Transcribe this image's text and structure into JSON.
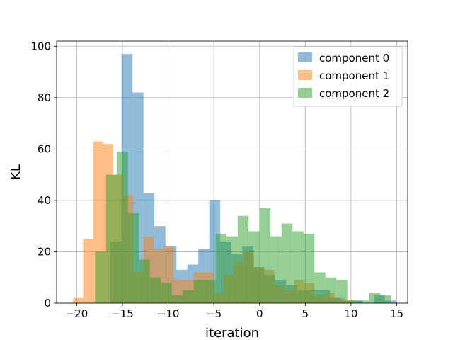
{
  "chart_data": {
    "type": "bar",
    "subtype": "histogram-overlay",
    "title": "",
    "xlabel": "iteration",
    "ylabel": "KL",
    "xlim": [
      -22.2,
      16.2
    ],
    "ylim": [
      0,
      102
    ],
    "xticks": [
      -20,
      -15,
      -10,
      -5,
      0,
      5,
      10,
      15
    ],
    "xtick_labels": [
      "−20",
      "−15",
      "−10",
      "−5",
      "0",
      "5",
      "10",
      "15"
    ],
    "yticks": [
      0,
      20,
      40,
      60,
      80,
      100
    ],
    "ytick_labels": [
      "0",
      "20",
      "40",
      "60",
      "80",
      "100"
    ],
    "grid": true,
    "legend_position": "top-right",
    "series": [
      {
        "name": "component 0",
        "color": "#1f77b4",
        "alpha": 0.5,
        "bins": [
          [
            -16.3,
            -15.1,
            24
          ],
          [
            -15.1,
            -13.9,
            97
          ],
          [
            -13.9,
            -12.7,
            82
          ],
          [
            -12.7,
            -11.5,
            43
          ],
          [
            -11.5,
            -10.3,
            30
          ],
          [
            -10.3,
            -9.1,
            22
          ],
          [
            -9.1,
            -7.9,
            13
          ],
          [
            -7.9,
            -6.7,
            15
          ],
          [
            -6.7,
            -5.5,
            21
          ],
          [
            -5.5,
            -4.3,
            40
          ],
          [
            -4.3,
            -3.1,
            24
          ],
          [
            -3.1,
            -1.9,
            19
          ],
          [
            -1.9,
            -0.7,
            22
          ],
          [
            -0.7,
            0.5,
            14
          ],
          [
            0.5,
            1.7,
            11
          ],
          [
            1.7,
            2.9,
            9
          ],
          [
            2.9,
            4.1,
            7
          ],
          [
            4.1,
            5.3,
            5
          ],
          [
            5.3,
            6.5,
            5
          ],
          [
            6.5,
            7.7,
            5
          ],
          [
            7.7,
            8.9,
            2
          ],
          [
            8.9,
            10.1,
            1
          ],
          [
            10.1,
            11.3,
            1
          ],
          [
            11.3,
            12.5,
            0
          ],
          [
            12.5,
            13.7,
            3
          ],
          [
            13.7,
            14.9,
            1
          ]
        ]
      },
      {
        "name": "component 1",
        "color": "#ff7f0e",
        "alpha": 0.5,
        "bins": [
          [
            -20.4,
            -19.3,
            2
          ],
          [
            -19.3,
            -18.2,
            25
          ],
          [
            -18.2,
            -17.1,
            63
          ],
          [
            -17.1,
            -16.0,
            62
          ],
          [
            -16.0,
            -14.9,
            50
          ],
          [
            -14.9,
            -13.8,
            42
          ],
          [
            -13.8,
            -12.7,
            12
          ],
          [
            -12.7,
            -11.6,
            26
          ],
          [
            -11.6,
            -10.5,
            21
          ],
          [
            -10.5,
            -9.4,
            22
          ],
          [
            -9.4,
            -8.3,
            9
          ],
          [
            -8.3,
            -7.2,
            9
          ],
          [
            -7.2,
            -6.1,
            12
          ],
          [
            -6.1,
            -5.0,
            12
          ],
          [
            -5.0,
            -3.9,
            4
          ],
          [
            -3.9,
            -2.8,
            11
          ],
          [
            -2.8,
            -1.7,
            16
          ],
          [
            -1.7,
            -0.6,
            20
          ],
          [
            -0.6,
            0.5,
            14
          ],
          [
            0.5,
            1.6,
            13
          ],
          [
            1.6,
            2.7,
            7
          ],
          [
            2.7,
            3.8,
            5
          ],
          [
            3.8,
            4.9,
            9
          ],
          [
            4.9,
            6.0,
            8
          ],
          [
            6.0,
            7.1,
            3
          ],
          [
            7.1,
            8.2,
            4
          ],
          [
            8.2,
            9.3,
            2
          ],
          [
            9.3,
            10.4,
            1
          ]
        ]
      },
      {
        "name": "component 2",
        "color": "#2ca02c",
        "alpha": 0.5,
        "bins": [
          [
            -18.0,
            -16.8,
            20
          ],
          [
            -16.8,
            -15.6,
            50
          ],
          [
            -15.6,
            -14.4,
            59
          ],
          [
            -14.4,
            -13.2,
            35
          ],
          [
            -13.2,
            -12.0,
            17
          ],
          [
            -12.0,
            -10.8,
            10
          ],
          [
            -10.8,
            -9.6,
            8
          ],
          [
            -9.6,
            -8.4,
            3
          ],
          [
            -8.4,
            -7.2,
            5
          ],
          [
            -7.2,
            -6.0,
            9
          ],
          [
            -6.0,
            -4.8,
            9
          ],
          [
            -4.8,
            -3.6,
            27
          ],
          [
            -3.6,
            -2.4,
            26
          ],
          [
            -2.4,
            -1.2,
            34
          ],
          [
            -1.2,
            0.0,
            28
          ],
          [
            0.0,
            1.2,
            37
          ],
          [
            1.2,
            2.4,
            26
          ],
          [
            2.4,
            3.6,
            31
          ],
          [
            3.6,
            4.8,
            28
          ],
          [
            4.8,
            6.0,
            27
          ],
          [
            6.0,
            7.2,
            12
          ],
          [
            7.2,
            8.4,
            10
          ],
          [
            8.4,
            9.6,
            9
          ],
          [
            9.6,
            10.8,
            1
          ],
          [
            10.8,
            12.0,
            1
          ],
          [
            12.0,
            13.2,
            4
          ],
          [
            13.2,
            14.4,
            3
          ]
        ]
      }
    ]
  }
}
